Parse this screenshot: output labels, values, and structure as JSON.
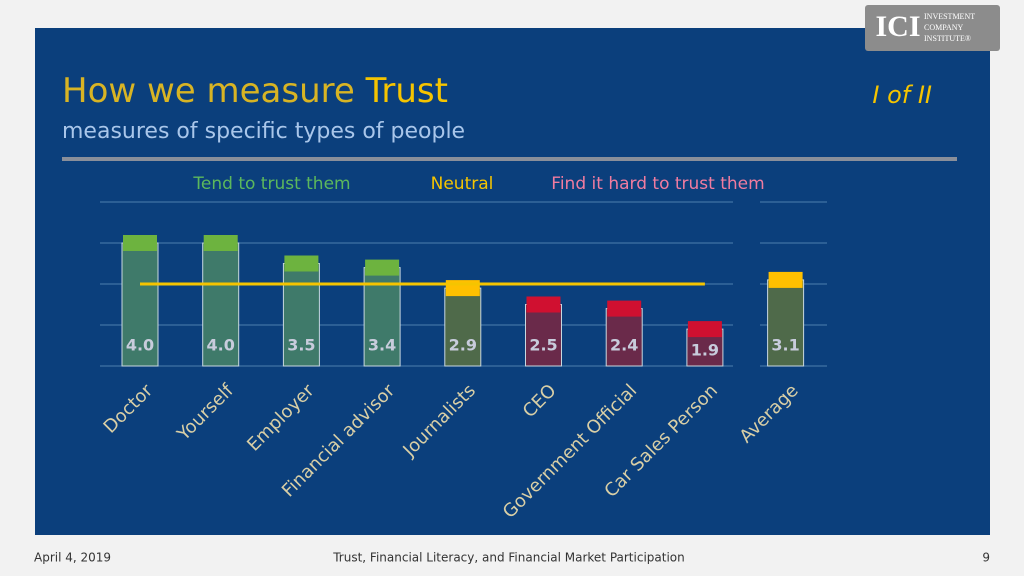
{
  "slide": {
    "title": "How we measure",
    "title_emphasis": "Trust",
    "subtitle": "measures of specific types of people",
    "counter": "I of II",
    "logo": "ICI",
    "logo_text": [
      "INVESTMENT",
      "COMPANY",
      "INSTITUTE®"
    ],
    "footer_date": "April 4, 2019",
    "footer_title": "Trust, Financial Literacy, and Financial Market Participation",
    "page": "9"
  },
  "chart_data": {
    "type": "bar",
    "zones": [
      {
        "label": "Tend to trust them",
        "color": "#5cb85c"
      },
      {
        "label": "Neutral",
        "color": "#f5c400"
      },
      {
        "label": "Find it hard to trust them",
        "color": "#f07ca0"
      }
    ],
    "categories": [
      "Doctor",
      "Yourself",
      "Employer",
      "Financial advisor",
      "Journalists",
      "CEO",
      "Government Official",
      "Car Sales Person",
      "Average"
    ],
    "values": [
      4.0,
      4.0,
      3.5,
      3.4,
      2.9,
      2.5,
      2.4,
      1.9,
      3.1
    ],
    "value_labels": [
      "4.0",
      "4.0",
      "3.5",
      "3.4",
      "2.9",
      "2.5",
      "2.4",
      "1.9",
      "3.1"
    ],
    "bar_colors": [
      "#3f7a6a",
      "#3f7a6a",
      "#3f7a6a",
      "#3f7a6a",
      "#4f6a4a",
      "#6a2a4a",
      "#6a2a4a",
      "#6a2a4a",
      "#4f6a4a"
    ],
    "cap_colors": [
      "#6db33f",
      "#6db33f",
      "#6db33f",
      "#6db33f",
      "#ffc000",
      "#d01030",
      "#d01030",
      "#d01030",
      "#ffc000"
    ],
    "ylim": [
      1,
      5
    ],
    "yticks": [
      1,
      2,
      3,
      4,
      5
    ],
    "grid": true,
    "reference_line": 3,
    "reference_color": "#f5c400"
  }
}
